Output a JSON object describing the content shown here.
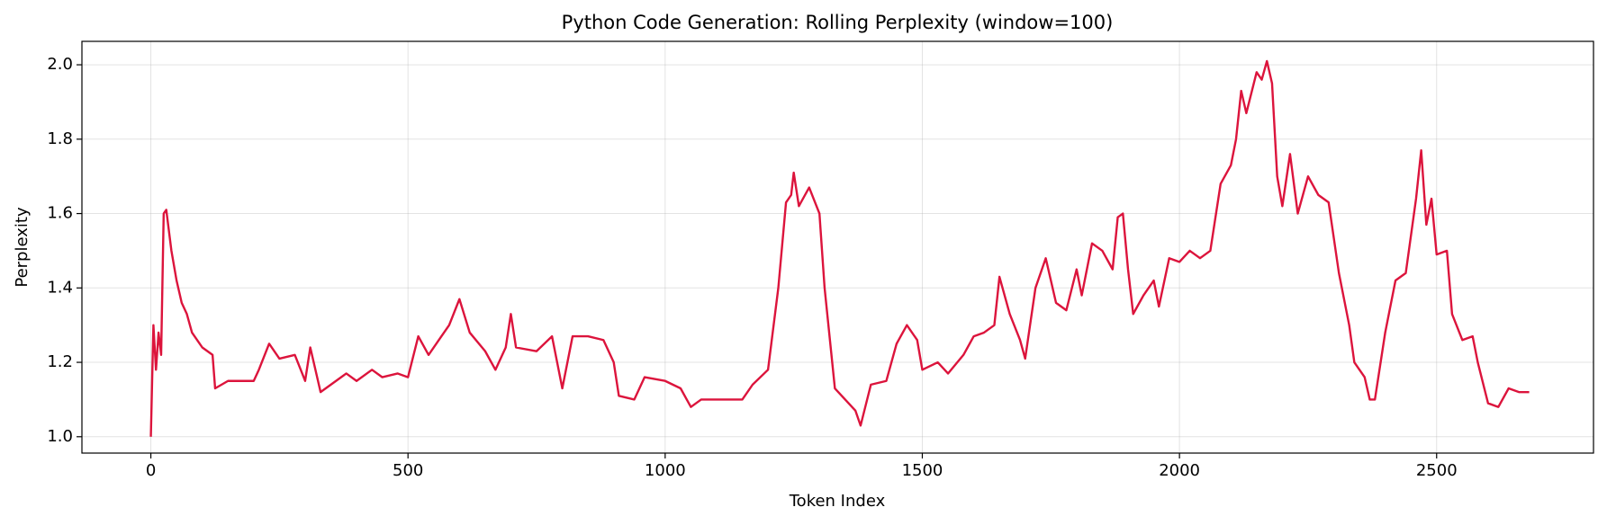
{
  "chart_data": {
    "type": "line",
    "title": "Python Code Generation: Rolling Perplexity (window=100)",
    "x_label": "Token Index",
    "y_label": "Perplexity",
    "xlim": [
      -134,
      2805
    ],
    "ylim": [
      0.956,
      2.063
    ],
    "xticks": [
      0,
      500,
      1000,
      1500,
      2000,
      2500
    ],
    "yticks": [
      {
        "value": 1,
        "label": "1.0"
      },
      1.2,
      1.4,
      1.6,
      1.8,
      {
        "value": 2,
        "label": "2.0"
      }
    ],
    "grid": true,
    "series": [
      {
        "name": "Rolling Perplexity",
        "color": "#dc143c",
        "x": [
          0,
          5,
          10,
          15,
          20,
          25,
          30,
          40,
          50,
          60,
          70,
          80,
          100,
          120,
          125,
          150,
          200,
          210,
          230,
          250,
          280,
          300,
          310,
          330,
          350,
          380,
          400,
          430,
          450,
          480,
          500,
          520,
          540,
          560,
          580,
          600,
          620,
          650,
          670,
          690,
          700,
          710,
          750,
          780,
          790,
          800,
          820,
          850,
          880,
          900,
          910,
          940,
          960,
          1000,
          1030,
          1050,
          1070,
          1100,
          1150,
          1170,
          1200,
          1220,
          1235,
          1245,
          1250,
          1260,
          1280,
          1300,
          1310,
          1330,
          1350,
          1370,
          1380,
          1400,
          1430,
          1450,
          1470,
          1490,
          1500,
          1530,
          1550,
          1580,
          1600,
          1620,
          1640,
          1650,
          1670,
          1690,
          1700,
          1720,
          1740,
          1760,
          1780,
          1800,
          1810,
          1830,
          1850,
          1870,
          1880,
          1890,
          1900,
          1910,
          1930,
          1950,
          1960,
          1980,
          2000,
          2020,
          2040,
          2060,
          2080,
          2100,
          2110,
          2120,
          2130,
          2150,
          2160,
          2170,
          2180,
          2190,
          2200,
          2215,
          2230,
          2250,
          2270,
          2290,
          2310,
          2330,
          2340,
          2360,
          2370,
          2380,
          2400,
          2420,
          2440,
          2460,
          2470,
          2480,
          2490,
          2500,
          2520,
          2530,
          2550,
          2570,
          2580,
          2600,
          2620,
          2640,
          2660,
          2680
        ],
        "values": [
          1.0,
          1.3,
          1.18,
          1.28,
          1.22,
          1.6,
          1.61,
          1.5,
          1.42,
          1.36,
          1.33,
          1.28,
          1.24,
          1.22,
          1.13,
          1.15,
          1.15,
          1.18,
          1.25,
          1.21,
          1.22,
          1.15,
          1.24,
          1.12,
          1.14,
          1.17,
          1.15,
          1.18,
          1.16,
          1.17,
          1.16,
          1.27,
          1.22,
          1.26,
          1.3,
          1.37,
          1.28,
          1.23,
          1.18,
          1.24,
          1.33,
          1.24,
          1.23,
          1.27,
          1.2,
          1.13,
          1.27,
          1.27,
          1.26,
          1.2,
          1.11,
          1.1,
          1.16,
          1.15,
          1.13,
          1.08,
          1.1,
          1.1,
          1.1,
          1.14,
          1.18,
          1.4,
          1.63,
          1.65,
          1.71,
          1.62,
          1.67,
          1.6,
          1.4,
          1.13,
          1.1,
          1.07,
          1.03,
          1.14,
          1.15,
          1.25,
          1.3,
          1.26,
          1.18,
          1.2,
          1.17,
          1.22,
          1.27,
          1.28,
          1.3,
          1.43,
          1.33,
          1.26,
          1.21,
          1.4,
          1.48,
          1.36,
          1.34,
          1.45,
          1.38,
          1.52,
          1.5,
          1.45,
          1.59,
          1.6,
          1.45,
          1.33,
          1.38,
          1.42,
          1.35,
          1.48,
          1.47,
          1.5,
          1.48,
          1.5,
          1.68,
          1.73,
          1.8,
          1.93,
          1.87,
          1.98,
          1.96,
          2.01,
          1.95,
          1.7,
          1.62,
          1.76,
          1.6,
          1.7,
          1.65,
          1.63,
          1.44,
          1.3,
          1.2,
          1.16,
          1.1,
          1.1,
          1.28,
          1.42,
          1.44,
          1.64,
          1.77,
          1.57,
          1.64,
          1.49,
          1.5,
          1.33,
          1.26,
          1.27,
          1.2,
          1.09,
          1.08,
          1.13,
          1.12,
          1.12
        ]
      }
    ]
  }
}
